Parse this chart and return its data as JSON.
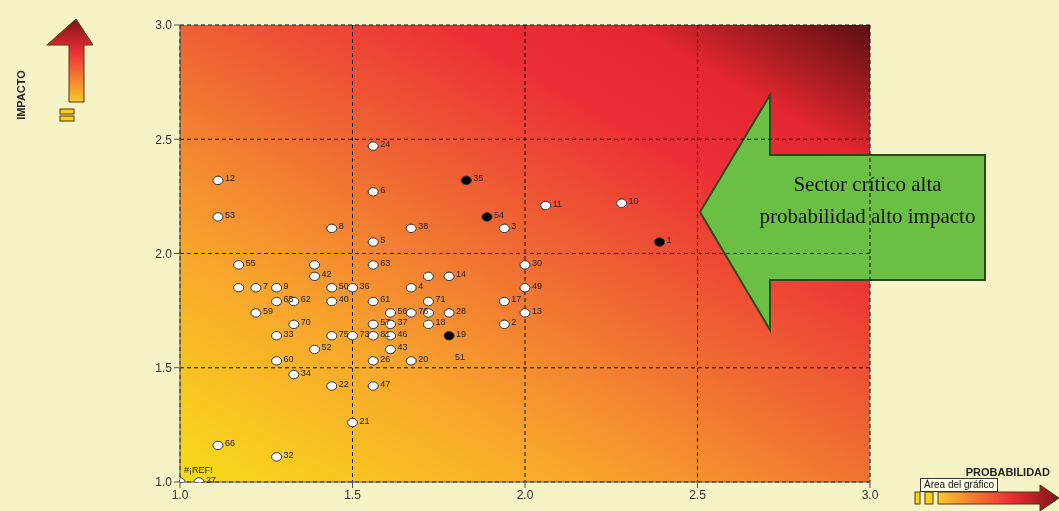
{
  "chart_data": {
    "type": "scatter",
    "xlim": [
      1,
      3
    ],
    "ylim": [
      1,
      3
    ],
    "xticks": [
      {
        "value": 1,
        "label": "1.0"
      },
      {
        "value": 1.5,
        "label": "1.5"
      },
      {
        "value": 2,
        "label": "2.0"
      },
      {
        "value": 2.5,
        "label": "2.5"
      },
      {
        "value": 3,
        "label": "3.0"
      }
    ],
    "yticks": [
      {
        "value": 1,
        "label": "1.0"
      },
      {
        "value": 1.5,
        "label": "1.5"
      },
      {
        "value": 2,
        "label": "2.0"
      },
      {
        "value": 2.5,
        "label": "2.5"
      },
      {
        "value": 3,
        "label": "3.0"
      }
    ],
    "grid": true,
    "marker": "circle",
    "series": [
      {
        "name": "12",
        "color": "#ffffff",
        "x": [
          1.11
        ],
        "values": [
          2.32
        ]
      },
      {
        "name": "53",
        "color": "#ffffff",
        "x": [
          1.11
        ],
        "values": [
          2.16
        ]
      },
      {
        "name": "8",
        "color": "#ffffff",
        "x": [
          1.44
        ],
        "values": [
          2.11
        ]
      },
      {
        "name": "55",
        "color": "#ffffff",
        "x": [
          1.17
        ],
        "values": [
          1.95
        ]
      },
      {
        "color": "#ffffff",
        "x": [
          1.39
        ],
        "values": [
          1.95
        ]
      },
      {
        "name": "42",
        "color": "#ffffff",
        "x": [
          1.39
        ],
        "values": [
          1.9
        ]
      },
      {
        "color": "#ffffff",
        "x": [
          1.17
        ],
        "values": [
          1.85
        ]
      },
      {
        "name": "7",
        "color": "#ffffff",
        "x": [
          1.22
        ],
        "values": [
          1.85
        ]
      },
      {
        "name": "9",
        "color": "#ffffff",
        "x": [
          1.28
        ],
        "values": [
          1.85
        ]
      },
      {
        "name": "50",
        "color": "#ffffff",
        "x": [
          1.44
        ],
        "values": [
          1.85
        ]
      },
      {
        "name": "36",
        "color": "#ffffff",
        "x": [
          1.5
        ],
        "values": [
          1.85
        ]
      },
      {
        "name": "65",
        "color": "#ffffff",
        "x": [
          1.28
        ],
        "values": [
          1.79
        ]
      },
      {
        "name": "62",
        "color": "#ffffff",
        "x": [
          1.33
        ],
        "values": [
          1.79
        ]
      },
      {
        "name": "40",
        "color": "#ffffff",
        "x": [
          1.44
        ],
        "values": [
          1.79
        ]
      },
      {
        "name": "59",
        "color": "#ffffff",
        "x": [
          1.22
        ],
        "values": [
          1.74
        ]
      },
      {
        "name": "70",
        "color": "#ffffff",
        "x": [
          1.33
        ],
        "values": [
          1.69
        ]
      },
      {
        "name": "33",
        "color": "#ffffff",
        "x": [
          1.28
        ],
        "values": [
          1.64
        ]
      },
      {
        "name": "75",
        "color": "#ffffff",
        "x": [
          1.44
        ],
        "values": [
          1.64
        ]
      },
      {
        "name": "52",
        "color": "#ffffff",
        "x": [
          1.39
        ],
        "values": [
          1.58
        ]
      },
      {
        "name": "73",
        "color": "#ffffff",
        "x": [
          1.5
        ],
        "values": [
          1.64
        ]
      },
      {
        "name": "60",
        "color": "#ffffff",
        "x": [
          1.28
        ],
        "values": [
          1.53
        ]
      },
      {
        "name": "34",
        "color": "#ffffff",
        "x": [
          1.33
        ],
        "values": [
          1.47
        ]
      },
      {
        "name": "22",
        "color": "#ffffff",
        "x": [
          1.44
        ],
        "values": [
          1.42
        ]
      },
      {
        "name": "21",
        "color": "#ffffff",
        "x": [
          1.5
        ],
        "values": [
          1.26
        ]
      },
      {
        "name": "66",
        "color": "#ffffff",
        "x": [
          1.11
        ],
        "values": [
          1.16
        ]
      },
      {
        "name": "32",
        "color": "#ffffff",
        "x": [
          1.28
        ],
        "values": [
          1.11
        ]
      },
      {
        "name": "#¡REF!",
        "color": "#ffffff",
        "x": [
          1.0
        ],
        "values": [
          1.0
        ]
      },
      {
        "name": "27",
        "color": "#ffffff",
        "x": [
          1.055
        ],
        "values": [
          1.0
        ]
      },
      {
        "name": "24",
        "color": "#ffffff",
        "x": [
          1.56
        ],
        "values": [
          2.47
        ]
      },
      {
        "name": "35",
        "color": "#000000",
        "x": [
          1.83
        ],
        "values": [
          2.32
        ]
      },
      {
        "name": "6",
        "color": "#ffffff",
        "x": [
          1.56
        ],
        "values": [
          2.27
        ]
      },
      {
        "name": "11",
        "color": "#ffffff",
        "x": [
          2.06
        ],
        "values": [
          2.21
        ]
      },
      {
        "name": "54",
        "color": "#000000",
        "x": [
          1.89
        ],
        "values": [
          2.16
        ]
      },
      {
        "name": "38",
        "color": "#ffffff",
        "x": [
          1.67
        ],
        "values": [
          2.11
        ]
      },
      {
        "name": "3",
        "color": "#ffffff",
        "x": [
          1.94
        ],
        "values": [
          2.11
        ]
      },
      {
        "name": "5",
        "color": "#ffffff",
        "x": [
          1.56
        ],
        "values": [
          2.05
        ]
      },
      {
        "name": "30",
        "color": "#ffffff",
        "x": [
          2.0
        ],
        "values": [
          1.95
        ]
      },
      {
        "name": "63",
        "color": "#ffffff",
        "x": [
          1.56
        ],
        "values": [
          1.95
        ]
      },
      {
        "color": "#ffffff",
        "x": [
          1.72
        ],
        "values": [
          1.9
        ]
      },
      {
        "name": "14",
        "color": "#ffffff",
        "x": [
          1.78
        ],
        "values": [
          1.9
        ]
      },
      {
        "name": "4",
        "color": "#ffffff",
        "x": [
          1.67
        ],
        "values": [
          1.85
        ]
      },
      {
        "name": "49",
        "color": "#ffffff",
        "x": [
          2.0
        ],
        "values": [
          1.85
        ]
      },
      {
        "name": "71",
        "color": "#ffffff",
        "x": [
          1.72
        ],
        "values": [
          1.79
        ]
      },
      {
        "name": "17",
        "color": "#ffffff",
        "x": [
          1.94
        ],
        "values": [
          1.79
        ]
      },
      {
        "name": "61",
        "color": "#ffffff",
        "x": [
          1.56
        ],
        "values": [
          1.79
        ]
      },
      {
        "name": "56",
        "color": "#ffffff",
        "x": [
          1.61
        ],
        "values": [
          1.74
        ]
      },
      {
        "name": "76",
        "color": "#ffffff",
        "x": [
          1.67
        ],
        "values": [
          1.74
        ]
      },
      {
        "color": "#ffffff",
        "x": [
          1.72
        ],
        "values": [
          1.74
        ]
      },
      {
        "name": "28",
        "color": "#ffffff",
        "x": [
          1.78
        ],
        "values": [
          1.74
        ]
      },
      {
        "name": "13",
        "color": "#ffffff",
        "x": [
          2.0
        ],
        "values": [
          1.74
        ]
      },
      {
        "name": "2",
        "color": "#ffffff",
        "x": [
          1.94
        ],
        "values": [
          1.69
        ]
      },
      {
        "name": "57",
        "color": "#ffffff",
        "x": [
          1.56
        ],
        "values": [
          1.69
        ]
      },
      {
        "name": "37",
        "color": "#ffffff",
        "x": [
          1.61
        ],
        "values": [
          1.69
        ]
      },
      {
        "name": "18",
        "color": "#ffffff",
        "x": [
          1.72
        ],
        "values": [
          1.69
        ]
      },
      {
        "name": "81",
        "color": "#ffffff",
        "x": [
          1.56
        ],
        "values": [
          1.64
        ]
      },
      {
        "name": "46",
        "color": "#ffffff",
        "x": [
          1.61
        ],
        "values": [
          1.64
        ]
      },
      {
        "name": "19",
        "color": "#000000",
        "x": [
          1.78
        ],
        "values": [
          1.64
        ]
      },
      {
        "name": "43",
        "color": "#ffffff",
        "x": [
          1.61
        ],
        "values": [
          1.58
        ]
      },
      {
        "name": "26",
        "color": "#ffffff",
        "x": [
          1.56
        ],
        "values": [
          1.53
        ]
      },
      {
        "name": "20",
        "color": "#ffffff",
        "x": [
          1.67
        ],
        "values": [
          1.53
        ]
      },
      {
        "name": "47",
        "color": "#ffffff",
        "x": [
          1.56
        ],
        "values": [
          1.42
        ]
      },
      {
        "name": "10",
        "color": "#ffffff",
        "x": [
          2.28
        ],
        "values": [
          2.22
        ]
      },
      {
        "name": "1",
        "color": "#000000",
        "x": [
          2.39
        ],
        "values": [
          2.05
        ]
      }
    ],
    "annotations": [
      "Sector crítico alta probabilidad alto impacto",
      "Área del gráfico",
      "51",
      "PROBABILIDAD",
      "IMPACTO"
    ]
  }
}
